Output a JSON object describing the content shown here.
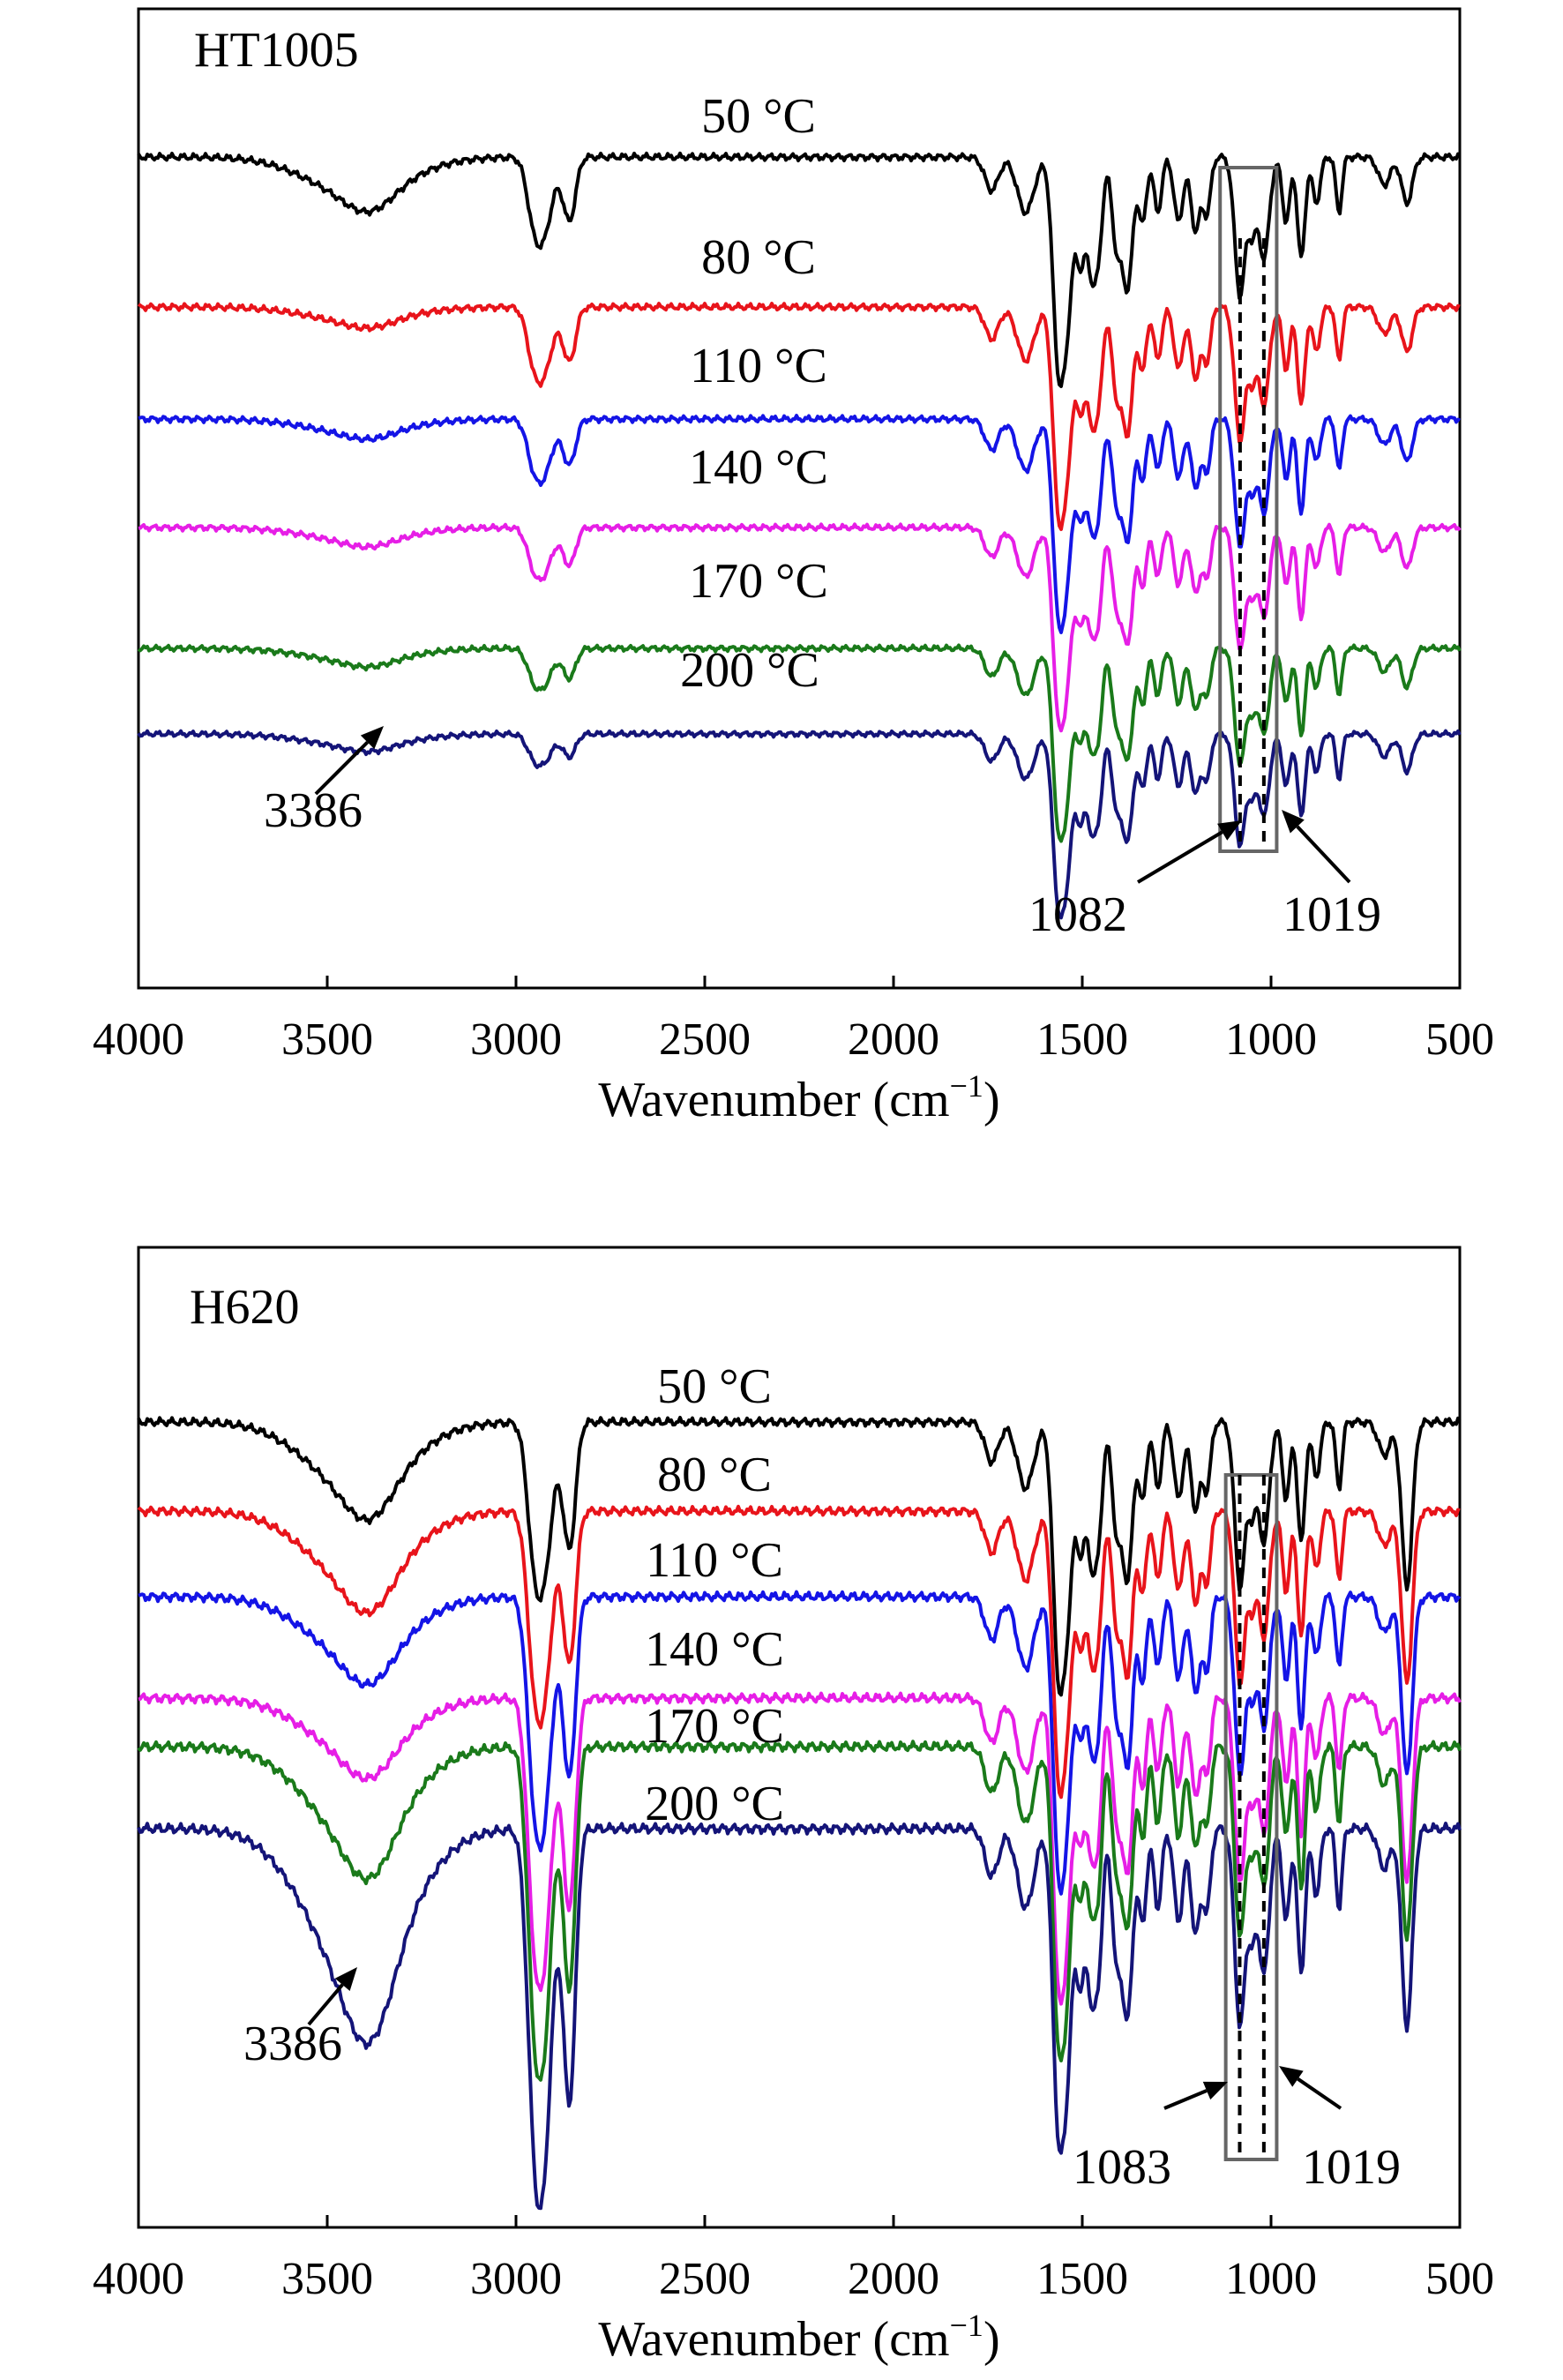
{
  "chart_data": [
    {
      "type": "line",
      "panel_label": "HT1005",
      "xlabel": "Wavenumber (cm",
      "xlabel_sup": "−1",
      "xlabel_close": ")",
      "xlim": [
        4000,
        500
      ],
      "xreversed": true,
      "xticks": [
        "4000",
        "3500",
        "3000",
        "2500",
        "2000",
        "1500",
        "1000",
        "500"
      ],
      "series": [
        {
          "name": "50 °C",
          "color": "#000000"
        },
        {
          "name": "80 °C",
          "color": "#e8141b"
        },
        {
          "name": "110 °C",
          "color": "#1414e6"
        },
        {
          "name": "140 °C",
          "color": "#e61ee6"
        },
        {
          "name": "170 °C",
          "color": "#1a7a1a"
        },
        {
          "name": "200 °C",
          "color": "#141478"
        }
      ],
      "highlight_box": [
        1135,
        985
      ],
      "peak_lines": [
        1082,
        1019
      ],
      "annotations": [
        {
          "text": "3386",
          "x": 3386
        },
        {
          "text": "1082",
          "x": 1082
        },
        {
          "text": "1019",
          "x": 1019
        }
      ]
    },
    {
      "type": "line",
      "panel_label": "H620",
      "xlabel": "Wavenumber (cm",
      "xlabel_sup": "−1",
      "xlabel_close": ")",
      "xlim": [
        4000,
        500
      ],
      "xreversed": true,
      "xticks": [
        "4000",
        "3500",
        "3000",
        "2500",
        "2000",
        "1500",
        "1000",
        "500"
      ],
      "series": [
        {
          "name": "50 °C",
          "color": "#000000"
        },
        {
          "name": "80 °C",
          "color": "#e8141b"
        },
        {
          "name": "110 °C",
          "color": "#1414e6"
        },
        {
          "name": "140 °C",
          "color": "#e61ee6"
        },
        {
          "name": "170 °C",
          "color": "#1a7a1a"
        },
        {
          "name": "200 °C",
          "color": "#141478"
        }
      ],
      "highlight_box": [
        1120,
        985
      ],
      "peak_lines": [
        1083,
        1019
      ],
      "annotations": [
        {
          "text": "3386",
          "x": 3386
        },
        {
          "text": "1083",
          "x": 1083
        },
        {
          "text": "1019",
          "x": 1019
        }
      ]
    }
  ]
}
